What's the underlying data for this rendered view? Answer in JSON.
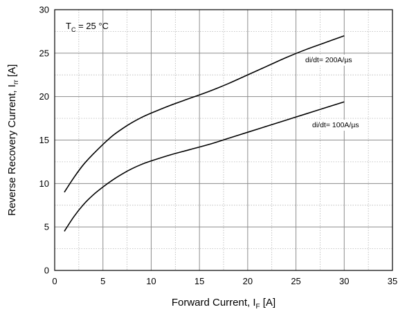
{
  "chart_data": {
    "type": "line",
    "title": "",
    "xlabel": {
      "main": "Forward Current, I",
      "sub": "F",
      "unit": " [A]"
    },
    "ylabel": {
      "main": "Reverse Recovery Current, I",
      "sub": "rr",
      "unit": " [A]"
    },
    "xlim": [
      0,
      35
    ],
    "ylim": [
      0,
      30
    ],
    "x_ticks": [
      0,
      5,
      10,
      15,
      20,
      25,
      30,
      35
    ],
    "y_ticks": [
      0,
      5,
      10,
      15,
      20,
      25,
      30
    ],
    "x_minor_step": 2.5,
    "y_minor_step": 2.5,
    "grid": true,
    "condition": {
      "prefix": "T",
      "sub": "C",
      "suffix": " = 25 °C"
    },
    "series": [
      {
        "name": "di/dt= 200A/µs",
        "x": [
          1,
          2,
          3,
          4,
          5,
          6,
          7,
          8,
          9,
          10,
          12,
          14,
          16,
          18,
          20,
          22,
          24,
          26,
          28,
          30
        ],
        "values": [
          9.0,
          10.7,
          12.2,
          13.4,
          14.5,
          15.5,
          16.3,
          17.0,
          17.6,
          18.1,
          19.0,
          19.8,
          20.6,
          21.5,
          22.5,
          23.5,
          24.5,
          25.4,
          26.2,
          27.0
        ]
      },
      {
        "name": "di/dt= 100A/µs",
        "x": [
          1,
          2,
          3,
          4,
          5,
          6,
          7,
          8,
          9,
          10,
          12,
          14,
          16,
          18,
          20,
          22,
          24,
          26,
          28,
          30
        ],
        "values": [
          4.5,
          6.2,
          7.6,
          8.7,
          9.6,
          10.4,
          11.1,
          11.7,
          12.2,
          12.6,
          13.3,
          13.9,
          14.5,
          15.2,
          15.9,
          16.6,
          17.3,
          18.0,
          18.7,
          19.4
        ]
      }
    ]
  }
}
